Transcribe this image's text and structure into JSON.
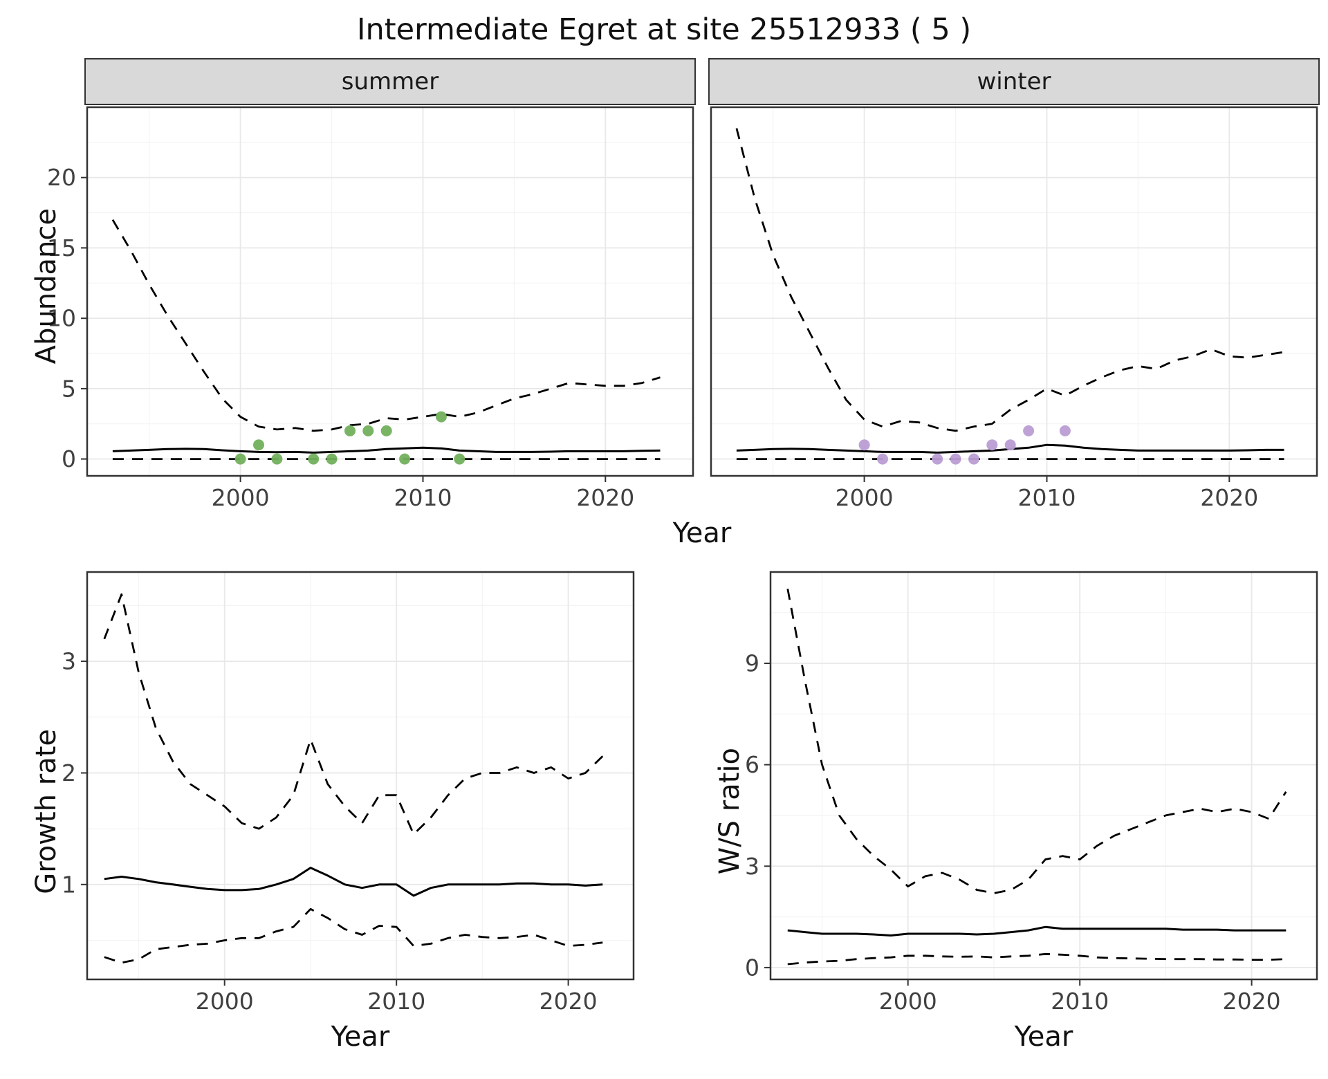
{
  "title": "Intermediate Egret at site 25512933 ( 5 )",
  "colors": {
    "line": "#000000",
    "summer_points": "#72b05c",
    "winter_points": "#bb9dd4",
    "strip_background": "#d9d9d9",
    "grid_major": "#e8e8e8",
    "grid_minor": "#f4f4f4",
    "panel_border": "#333333"
  },
  "chart_data": [
    {
      "id": "abundance-summer",
      "type": "line",
      "facet": "summer",
      "title": "",
      "ylabel": "Abundance",
      "xlabel": "Year",
      "xlim": [
        1991.6,
        2024.8
      ],
      "ylim": [
        -1.2,
        25.0
      ],
      "xticks": [
        2000,
        2010,
        2020
      ],
      "yticks": [
        0,
        5,
        10,
        15,
        20
      ],
      "show_y_tick_labels": true,
      "grid": true,
      "legend": "none",
      "x": [
        1993,
        1994,
        1995,
        1996,
        1997,
        1998,
        1999,
        2000,
        2001,
        2002,
        2003,
        2004,
        2005,
        2006,
        2007,
        2008,
        2009,
        2010,
        2011,
        2012,
        2013,
        2014,
        2015,
        2016,
        2017,
        2018,
        2019,
        2020,
        2021,
        2022,
        2023
      ],
      "series": [
        {
          "name": "upper_ci",
          "style": "dashed",
          "y": [
            17.0,
            14.8,
            12.4,
            10.2,
            8.2,
            6.2,
            4.3,
            3.0,
            2.3,
            2.1,
            2.2,
            2.0,
            2.1,
            2.4,
            2.5,
            2.9,
            2.8,
            3.0,
            3.2,
            3.0,
            3.3,
            3.8,
            4.3,
            4.6,
            5.0,
            5.4,
            5.3,
            5.2,
            5.2,
            5.4,
            5.8
          ]
        },
        {
          "name": "median",
          "style": "solid",
          "y": [
            0.55,
            0.6,
            0.65,
            0.7,
            0.72,
            0.7,
            0.62,
            0.55,
            0.5,
            0.48,
            0.5,
            0.45,
            0.5,
            0.55,
            0.6,
            0.7,
            0.75,
            0.8,
            0.75,
            0.6,
            0.55,
            0.5,
            0.5,
            0.5,
            0.52,
            0.55,
            0.55,
            0.55,
            0.55,
            0.58,
            0.6
          ]
        },
        {
          "name": "lower_ci",
          "style": "dashed",
          "y": [
            0,
            0,
            0,
            0,
            0,
            0,
            0,
            0,
            0,
            0,
            0,
            0,
            0,
            0,
            0,
            0,
            0,
            0,
            0,
            0,
            0,
            0,
            0,
            0,
            0,
            0,
            0,
            0,
            0,
            0,
            0
          ]
        }
      ],
      "points": {
        "name": "observed-counts-summer",
        "color": "#72b05c",
        "x": [
          2000,
          2001,
          2002,
          2004,
          2005,
          2006,
          2007,
          2008,
          2009,
          2011,
          2012
        ],
        "y": [
          0,
          1,
          0,
          0,
          0,
          2,
          2,
          2,
          0,
          3,
          0
        ]
      }
    },
    {
      "id": "abundance-winter",
      "type": "line",
      "facet": "winter",
      "title": "",
      "ylabel": "Abundance",
      "xlabel": "Year",
      "xlim": [
        1991.6,
        2024.8
      ],
      "ylim": [
        -1.2,
        25.0
      ],
      "xticks": [
        2000,
        2010,
        2020
      ],
      "yticks": [
        0,
        5,
        10,
        15,
        20
      ],
      "show_y_tick_labels": false,
      "grid": true,
      "legend": "none",
      "x": [
        1993,
        1994,
        1995,
        1996,
        1997,
        1998,
        1999,
        2000,
        2001,
        2002,
        2003,
        2004,
        2005,
        2006,
        2007,
        2008,
        2009,
        2010,
        2011,
        2012,
        2013,
        2014,
        2015,
        2016,
        2017,
        2018,
        2019,
        2020,
        2021,
        2022,
        2023
      ],
      "series": [
        {
          "name": "upper_ci",
          "style": "dashed",
          "y": [
            23.5,
            18.5,
            14.5,
            11.5,
            9.0,
            6.5,
            4.2,
            2.8,
            2.3,
            2.7,
            2.6,
            2.2,
            2.0,
            2.3,
            2.5,
            3.5,
            4.2,
            5.0,
            4.5,
            5.2,
            5.8,
            6.3,
            6.6,
            6.4,
            7.0,
            7.3,
            7.8,
            7.3,
            7.2,
            7.4,
            7.6
          ]
        },
        {
          "name": "median",
          "style": "solid",
          "y": [
            0.6,
            0.65,
            0.7,
            0.72,
            0.7,
            0.65,
            0.6,
            0.55,
            0.5,
            0.5,
            0.5,
            0.45,
            0.5,
            0.55,
            0.6,
            0.7,
            0.8,
            1.0,
            0.95,
            0.8,
            0.7,
            0.65,
            0.6,
            0.6,
            0.6,
            0.6,
            0.6,
            0.6,
            0.62,
            0.65,
            0.65
          ]
        },
        {
          "name": "lower_ci",
          "style": "dashed",
          "y": [
            0,
            0,
            0,
            0,
            0,
            0,
            0,
            0,
            0,
            0,
            0,
            0,
            0,
            0,
            0,
            0,
            0,
            0,
            0,
            0,
            0,
            0,
            0,
            0,
            0,
            0,
            0,
            0,
            0,
            0,
            0
          ]
        }
      ],
      "points": {
        "name": "observed-counts-winter",
        "color": "#bb9dd4",
        "x": [
          2000,
          2001,
          2004,
          2005,
          2006,
          2007,
          2008,
          2009,
          2011
        ],
        "y": [
          1,
          0,
          0,
          0,
          0,
          1,
          1,
          2,
          2
        ]
      }
    },
    {
      "id": "growth-rate",
      "type": "line",
      "facet": "",
      "title": "",
      "ylabel": "Growth rate",
      "xlabel": "Year",
      "xlim": [
        1992.0,
        2023.8
      ],
      "ylim": [
        0.15,
        3.8
      ],
      "xticks": [
        2000,
        2010,
        2020
      ],
      "yticks": [
        1,
        2,
        3
      ],
      "show_y_tick_labels": true,
      "grid": true,
      "legend": "none",
      "x": [
        1993,
        1994,
        1995,
        1996,
        1997,
        1998,
        1999,
        2000,
        2001,
        2002,
        2003,
        2004,
        2005,
        2006,
        2007,
        2008,
        2009,
        2010,
        2011,
        2012,
        2013,
        2014,
        2015,
        2016,
        2017,
        2018,
        2019,
        2020,
        2021,
        2022
      ],
      "series": [
        {
          "name": "upper_ci",
          "style": "dashed",
          "y": [
            3.2,
            3.6,
            2.9,
            2.4,
            2.1,
            1.9,
            1.8,
            1.7,
            1.55,
            1.5,
            1.6,
            1.8,
            2.3,
            1.9,
            1.7,
            1.55,
            1.8,
            1.8,
            1.45,
            1.6,
            1.8,
            1.95,
            2.0,
            2.0,
            2.05,
            2.0,
            2.05,
            1.95,
            2.0,
            2.15
          ]
        },
        {
          "name": "median",
          "style": "solid",
          "y": [
            1.05,
            1.07,
            1.05,
            1.02,
            1.0,
            0.98,
            0.96,
            0.95,
            0.95,
            0.96,
            1.0,
            1.05,
            1.15,
            1.08,
            1.0,
            0.97,
            1.0,
            1.0,
            0.9,
            0.97,
            1.0,
            1.0,
            1.0,
            1.0,
            1.01,
            1.01,
            1.0,
            1.0,
            0.99,
            1.0
          ]
        },
        {
          "name": "lower_ci",
          "style": "dashed",
          "y": [
            0.35,
            0.3,
            0.33,
            0.42,
            0.44,
            0.46,
            0.47,
            0.5,
            0.52,
            0.52,
            0.58,
            0.62,
            0.78,
            0.7,
            0.6,
            0.55,
            0.63,
            0.62,
            0.45,
            0.47,
            0.52,
            0.55,
            0.53,
            0.52,
            0.53,
            0.55,
            0.5,
            0.45,
            0.46,
            0.48
          ]
        }
      ],
      "points": null
    },
    {
      "id": "ws-ratio",
      "type": "line",
      "facet": "",
      "title": "",
      "ylabel": "W/S ratio",
      "xlabel": "Year",
      "xlim": [
        1992.0,
        2023.8
      ],
      "ylim": [
        -0.35,
        11.7
      ],
      "xticks": [
        2000,
        2010,
        2020
      ],
      "yticks": [
        0,
        3,
        6,
        9
      ],
      "show_y_tick_labels": true,
      "grid": true,
      "legend": "none",
      "x": [
        1993,
        1994,
        1995,
        1996,
        1997,
        1998,
        1999,
        2000,
        2001,
        2002,
        2003,
        2004,
        2005,
        2006,
        2007,
        2008,
        2009,
        2010,
        2011,
        2012,
        2013,
        2014,
        2015,
        2016,
        2017,
        2018,
        2019,
        2020,
        2021,
        2022
      ],
      "series": [
        {
          "name": "upper_ci",
          "style": "dashed",
          "y": [
            11.2,
            8.5,
            6.0,
            4.5,
            3.8,
            3.3,
            2.9,
            2.4,
            2.7,
            2.8,
            2.6,
            2.3,
            2.2,
            2.3,
            2.6,
            3.2,
            3.3,
            3.2,
            3.6,
            3.9,
            4.1,
            4.3,
            4.5,
            4.6,
            4.7,
            4.6,
            4.7,
            4.6,
            4.4,
            5.2
          ]
        },
        {
          "name": "median",
          "style": "solid",
          "y": [
            1.1,
            1.05,
            1.0,
            1.0,
            1.0,
            0.98,
            0.95,
            1.0,
            1.0,
            1.0,
            1.0,
            0.98,
            1.0,
            1.05,
            1.1,
            1.2,
            1.15,
            1.15,
            1.15,
            1.15,
            1.15,
            1.15,
            1.15,
            1.12,
            1.12,
            1.12,
            1.1,
            1.1,
            1.1,
            1.1
          ]
        },
        {
          "name": "lower_ci",
          "style": "dashed",
          "y": [
            0.1,
            0.15,
            0.18,
            0.2,
            0.25,
            0.28,
            0.3,
            0.35,
            0.35,
            0.33,
            0.32,
            0.33,
            0.3,
            0.33,
            0.35,
            0.4,
            0.38,
            0.35,
            0.3,
            0.28,
            0.27,
            0.26,
            0.25,
            0.25,
            0.25,
            0.24,
            0.24,
            0.23,
            0.23,
            0.25
          ]
        }
      ],
      "points": null
    }
  ]
}
